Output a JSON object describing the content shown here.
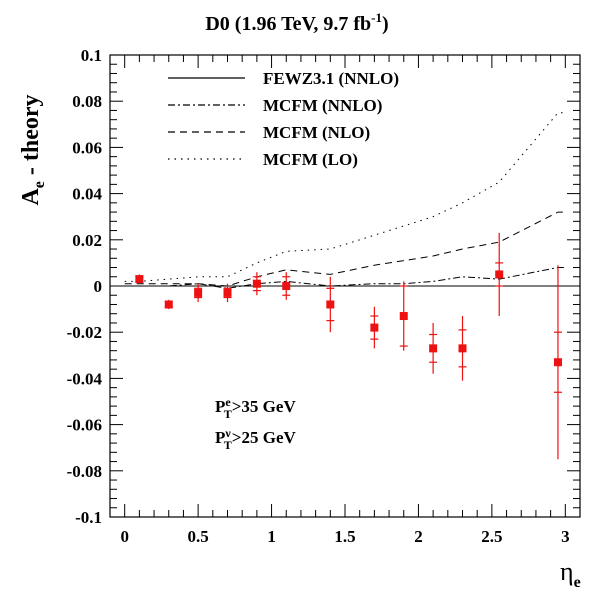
{
  "chart_data": {
    "type": "scatter",
    "title": "D0 (1.96 TeV, 9.7 fb",
    "title_sup": "-1",
    "title_close": ")",
    "xlabel": "η",
    "xlabel_sub": "e",
    "ylabel": "A",
    "ylabel_sub": "e",
    "ylabel_rest": " - theory",
    "xlim": [
      -0.1,
      3.1
    ],
    "ylim": [
      -0.1,
      0.1
    ],
    "x_ticks": [
      0,
      0.5,
      1,
      1.5,
      2,
      2.5,
      3
    ],
    "x_tick_labels": [
      "0",
      "0.5",
      "1",
      "1.5",
      "2",
      "2.5",
      "3"
    ],
    "y_ticks": [
      -0.1,
      -0.08,
      -0.06,
      -0.04,
      -0.02,
      0,
      0.02,
      0.04,
      0.06,
      0.08,
      0.1
    ],
    "y_tick_labels": [
      "-0.1",
      "-0.08",
      "-0.06",
      "-0.04",
      "-0.02",
      "0",
      "0.02",
      "0.04",
      "0.06",
      "0.08",
      "0.1"
    ],
    "grid": false,
    "legend_position": "top-left",
    "annotations": [
      {
        "base": "P",
        "sub": "T",
        "sup": "e",
        "rest": ">35 GeV"
      },
      {
        "base": "P",
        "sub": "T",
        "sup": "ν",
        "rest": ">25 GeV"
      }
    ],
    "series": [
      {
        "name": "FEWZ3.1 (NNLO)",
        "kind": "line",
        "style": "solid",
        "x": [
          0.1,
          0.3,
          0.5,
          0.7,
          0.9,
          1.1,
          1.4,
          1.7,
          1.9,
          2.1,
          2.3,
          2.55,
          2.95
        ],
        "y": [
          0,
          0,
          0,
          0,
          0,
          0,
          0,
          0,
          0,
          0,
          0,
          0,
          0
        ]
      },
      {
        "name": "MCFM (NNLO)",
        "kind": "line",
        "style": "dashdot",
        "x": [
          0.1,
          0.3,
          0.5,
          0.7,
          0.9,
          1.1,
          1.4,
          1.7,
          1.9,
          2.1,
          2.3,
          2.55,
          2.95
        ],
        "y": [
          0.0,
          0.0,
          0.001,
          -0.001,
          0.001,
          0.002,
          0.0,
          0.001,
          0.001,
          0.002,
          0.004,
          0.003,
          0.008
        ]
      },
      {
        "name": "MCFM (NLO)",
        "kind": "line",
        "style": "dashed",
        "x": [
          0.1,
          0.3,
          0.5,
          0.7,
          0.9,
          1.1,
          1.4,
          1.7,
          1.9,
          2.1,
          2.3,
          2.55,
          2.95
        ],
        "y": [
          0.001,
          0.001,
          0.001,
          0.0,
          0.004,
          0.007,
          0.005,
          0.009,
          0.011,
          0.013,
          0.016,
          0.019,
          0.032
        ]
      },
      {
        "name": "MCFM (LO)",
        "kind": "line",
        "style": "dotted",
        "x": [
          0.1,
          0.3,
          0.5,
          0.7,
          0.9,
          1.1,
          1.4,
          1.7,
          1.9,
          2.1,
          2.3,
          2.55,
          2.95
        ],
        "y": [
          0.002,
          0.003,
          0.004,
          0.004,
          0.01,
          0.015,
          0.016,
          0.022,
          0.026,
          0.03,
          0.036,
          0.045,
          0.075
        ]
      },
      {
        "name": "data",
        "kind": "points",
        "color": "#ee1111",
        "x": [
          0.1,
          0.3,
          0.5,
          0.7,
          0.9,
          1.1,
          1.4,
          1.7,
          1.9,
          2.1,
          2.3,
          2.55,
          2.95
        ],
        "y": [
          0.003,
          -0.008,
          -0.003,
          -0.003,
          0.001,
          0.0,
          -0.008,
          -0.018,
          -0.013,
          -0.027,
          -0.027,
          0.005,
          -0.033
        ],
        "err_stat": [
          0.001,
          0.001,
          0.002,
          0.002,
          0.003,
          0.004,
          0.007,
          0.005,
          0.013,
          0.006,
          0.008,
          0.005,
          0.013
        ],
        "err_tot": [
          0.002,
          0.002,
          0.004,
          0.004,
          0.005,
          0.006,
          0.012,
          0.009,
          0.015,
          0.011,
          0.014,
          0.018,
          0.042
        ]
      }
    ]
  }
}
